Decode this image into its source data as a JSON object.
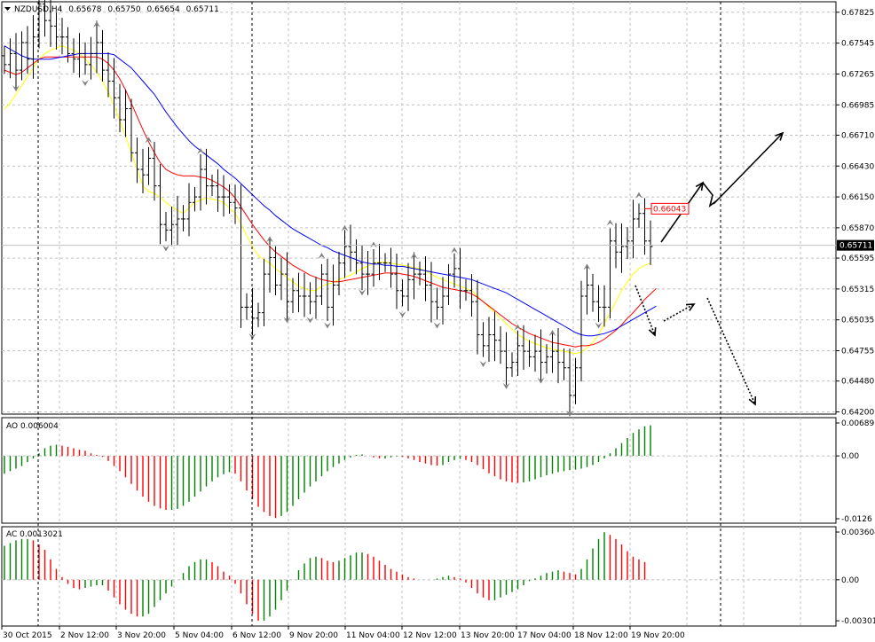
{
  "header": {
    "symbol": "NZDUSD,H4",
    "open": "0.65678",
    "high": "0.65750",
    "low": "0.65654",
    "close": "0.65711"
  },
  "colors": {
    "bull": "#008000",
    "bear": "#ff0000",
    "fast_ma": "#ffff00",
    "mid_ma": "#ff0000",
    "slow_ma": "#0000ff",
    "grid": "#c0c0c0",
    "fractal": "#808080"
  },
  "chart_data": [
    {
      "type": "ohlc",
      "name": "price",
      "ylim": [
        0.6418,
        0.6792
      ],
      "y_ticks": [
        "0.67825",
        "0.67545",
        "0.67265",
        "0.66985",
        "0.66710",
        "0.66430",
        "0.66150",
        "0.65870",
        "0.65595",
        "0.65315",
        "0.65035",
        "0.64755",
        "0.64480",
        "0.64200"
      ],
      "current_price_label": "0.65711",
      "marked_level_label": "0.66043",
      "marked_level": 0.66043,
      "x_labels": [
        "30 Oct 2015",
        "2 Nov 12:00",
        "3 Nov 20:00",
        "5 Nov 04:00",
        "6 Nov 12:00",
        "9 Nov 20:00",
        "11 Nov 04:00",
        "12 Nov 12:00",
        "13 Nov 20:00",
        "17 Nov 04:00",
        "18 Nov 12:00",
        "19 Nov 20:00"
      ],
      "close": [
        0.6735,
        0.6745,
        0.673,
        0.6755,
        0.674,
        0.676,
        0.679,
        0.6775,
        0.677,
        0.676,
        0.676,
        0.6745,
        0.674,
        0.6745,
        0.6735,
        0.6745,
        0.6755,
        0.673,
        0.672,
        0.6705,
        0.6685,
        0.6695,
        0.6655,
        0.664,
        0.6635,
        0.665,
        0.6625,
        0.659,
        0.6585,
        0.659,
        0.6595,
        0.6595,
        0.661,
        0.6615,
        0.664,
        0.6625,
        0.6625,
        0.6615,
        0.6615,
        0.661,
        0.6605,
        0.6515,
        0.6515,
        0.6505,
        0.651,
        0.6545,
        0.656,
        0.6535,
        0.6545,
        0.652,
        0.653,
        0.6525,
        0.6525,
        0.652,
        0.6525,
        0.6545,
        0.6515,
        0.6535,
        0.6555,
        0.657,
        0.6565,
        0.6555,
        0.6545,
        0.6545,
        0.6555,
        0.6555,
        0.6555,
        0.6545,
        0.653,
        0.6525,
        0.654,
        0.6545,
        0.6545,
        0.6535,
        0.652,
        0.6515,
        0.6525,
        0.6545,
        0.655,
        0.653,
        0.653,
        0.652,
        0.649,
        0.648,
        0.649,
        0.6485,
        0.6475,
        0.646,
        0.6465,
        0.648,
        0.6475,
        0.647,
        0.6475,
        0.6465,
        0.647,
        0.6475,
        0.6465,
        0.646,
        0.6435,
        0.646,
        0.6525,
        0.6535,
        0.652,
        0.6515,
        0.6515,
        0.6575,
        0.6565,
        0.657,
        0.6575,
        0.6595,
        0.66,
        0.6575,
        0.657
      ],
      "wick_range_note": "",
      "moving_averages": {
        "fast": [
          0.6695,
          0.67,
          0.6708,
          0.6716,
          0.6724,
          0.6732,
          0.674,
          0.6745,
          0.6748,
          0.675,
          0.6752,
          0.675,
          0.6748,
          0.6745,
          0.674,
          0.6735,
          0.6728,
          0.672,
          0.671,
          0.6698,
          0.6684,
          0.667,
          0.6655,
          0.664,
          0.6625,
          0.662,
          0.6618,
          0.6615,
          0.661,
          0.6606,
          0.6603,
          0.66,
          0.6605,
          0.661,
          0.6612,
          0.6614,
          0.6613,
          0.6612,
          0.661,
          0.6605,
          0.66,
          0.659,
          0.658,
          0.657,
          0.6562,
          0.6558,
          0.6555,
          0.655,
          0.6546,
          0.6542,
          0.6538,
          0.6534,
          0.6532,
          0.653,
          0.653,
          0.6534,
          0.6536,
          0.6537,
          0.654,
          0.6542,
          0.6544,
          0.6547,
          0.655,
          0.6552,
          0.6555,
          0.6556,
          0.6556,
          0.6555,
          0.6554,
          0.6553,
          0.6552,
          0.6551,
          0.655,
          0.6548,
          0.6545,
          0.6542,
          0.654,
          0.6538,
          0.6536,
          0.6534,
          0.6532,
          0.653,
          0.6525,
          0.652,
          0.6515,
          0.651,
          0.6505,
          0.65,
          0.6495,
          0.649,
          0.6487,
          0.6484,
          0.6482,
          0.648,
          0.6478,
          0.6477,
          0.6476,
          0.6475,
          0.6474,
          0.6473,
          0.6474,
          0.6478,
          0.6483,
          0.649,
          0.65,
          0.651,
          0.652,
          0.653,
          0.6538,
          0.6545,
          0.655,
          0.6553,
          0.6555
        ],
        "mid": [
          0.673,
          0.6728,
          0.6726,
          0.6728,
          0.6732,
          0.6736,
          0.674,
          0.6742,
          0.6742,
          0.6742,
          0.6742,
          0.6742,
          0.6742,
          0.6742,
          0.6742,
          0.6742,
          0.6742,
          0.674,
          0.6736,
          0.673,
          0.6722,
          0.6712,
          0.67,
          0.6688,
          0.6676,
          0.6665,
          0.6655,
          0.6646,
          0.664,
          0.6637,
          0.6635,
          0.6634,
          0.6634,
          0.6634,
          0.6633,
          0.6632,
          0.663,
          0.6627,
          0.6624,
          0.662,
          0.6614,
          0.6606,
          0.6598,
          0.659,
          0.6583,
          0.6576,
          0.657,
          0.6565,
          0.6561,
          0.6557,
          0.6553,
          0.655,
          0.6547,
          0.6544,
          0.6542,
          0.654,
          0.6539,
          0.6538,
          0.6538,
          0.6539,
          0.654,
          0.6541,
          0.6542,
          0.6543,
          0.6544,
          0.6545,
          0.6546,
          0.6546,
          0.6546,
          0.6545,
          0.6544,
          0.6543,
          0.6541,
          0.6539,
          0.6537,
          0.6535,
          0.6533,
          0.6532,
          0.6531,
          0.653,
          0.6529,
          0.6527,
          0.6524,
          0.652,
          0.6516,
          0.6512,
          0.6508,
          0.6504,
          0.65,
          0.6497,
          0.6494,
          0.6491,
          0.6489,
          0.6487,
          0.6485,
          0.6483,
          0.6482,
          0.6481,
          0.648,
          0.6479,
          0.648,
          0.648,
          0.6481,
          0.6483,
          0.6486,
          0.649,
          0.6494,
          0.6499,
          0.6505,
          0.651,
          0.6516,
          0.6522,
          0.6527,
          0.6532
        ],
        "slow": [
          0.6752,
          0.6749,
          0.6746,
          0.6743,
          0.6741,
          0.674,
          0.674,
          0.674,
          0.674,
          0.6741,
          0.6742,
          0.6743,
          0.6744,
          0.6745,
          0.6745,
          0.6745,
          0.6745,
          0.6745,
          0.6745,
          0.6744,
          0.674,
          0.6736,
          0.6732,
          0.6726,
          0.672,
          0.6714,
          0.6708,
          0.67,
          0.6692,
          0.6685,
          0.6678,
          0.6672,
          0.6666,
          0.6661,
          0.6657,
          0.6653,
          0.6649,
          0.6645,
          0.664,
          0.6636,
          0.6632,
          0.6627,
          0.6622,
          0.6617,
          0.6612,
          0.6607,
          0.6603,
          0.6598,
          0.6594,
          0.659,
          0.6586,
          0.6583,
          0.658,
          0.6577,
          0.6574,
          0.6571,
          0.6569,
          0.6566,
          0.6564,
          0.6562,
          0.656,
          0.6558,
          0.6556,
          0.6555,
          0.6554,
          0.6554,
          0.6553,
          0.6553,
          0.6552,
          0.6552,
          0.6551,
          0.655,
          0.6549,
          0.6548,
          0.6547,
          0.6546,
          0.6545,
          0.6544,
          0.6543,
          0.6542,
          0.6541,
          0.654,
          0.6538,
          0.6536,
          0.6534,
          0.6532,
          0.653,
          0.6528,
          0.6525,
          0.6522,
          0.6519,
          0.6516,
          0.6513,
          0.651,
          0.6507,
          0.6504,
          0.6501,
          0.6498,
          0.6495,
          0.6492,
          0.649,
          0.6489,
          0.6489,
          0.649,
          0.6491,
          0.6493,
          0.6495,
          0.6498,
          0.6501,
          0.6504,
          0.6507,
          0.651,
          0.6513,
          0.6516
        ]
      }
    },
    {
      "type": "histogram",
      "name": "AO",
      "label": "AO 0.006004",
      "ylim": [
        -0.0132,
        0.0075
      ],
      "y_ticks": [
        "0.00689",
        "0.00",
        "-0.0126"
      ],
      "values": [
        -0.0035,
        -0.003,
        -0.0025,
        -0.002,
        -0.0012,
        -0.0005,
        0.0005,
        0.0015,
        0.002,
        0.0022,
        0.002,
        0.0018,
        0.0015,
        0.0012,
        0.001,
        0.0005,
        0.0002,
        -0.0002,
        -0.001,
        -0.002,
        -0.003,
        -0.0042,
        -0.0055,
        -0.0068,
        -0.008,
        -0.009,
        -0.0098,
        -0.0103,
        -0.0106,
        -0.0106,
        -0.0104,
        -0.0098,
        -0.009,
        -0.008,
        -0.007,
        -0.006,
        -0.005,
        -0.0042,
        -0.0036,
        -0.0032,
        -0.0035,
        -0.005,
        -0.0068,
        -0.0085,
        -0.01,
        -0.011,
        -0.0118,
        -0.0122,
        -0.0118,
        -0.011,
        -0.0098,
        -0.0085,
        -0.0072,
        -0.006,
        -0.005,
        -0.004,
        -0.003,
        -0.0022,
        -0.0015,
        -0.0008,
        -0.0003,
        0.0002,
        0.0003,
        0.0,
        -0.0003,
        -0.0005,
        -0.0005,
        -0.0003,
        -0.0001,
        -0.0002,
        -0.0005,
        -0.0008,
        -0.0012,
        -0.0015,
        -0.0018,
        -0.0019,
        -0.0018,
        -0.0012,
        -0.0008,
        -0.0006,
        -0.0008,
        -0.0012,
        -0.0018,
        -0.0026,
        -0.0034,
        -0.004,
        -0.0046,
        -0.005,
        -0.0052,
        -0.0053,
        -0.0052,
        -0.005,
        -0.0046,
        -0.0042,
        -0.0038,
        -0.0035,
        -0.0032,
        -0.003,
        -0.0028,
        -0.0027,
        -0.0025,
        -0.0022,
        -0.0018,
        -0.0012,
        -0.0005,
        0.0005,
        0.0015,
        0.0025,
        0.0035,
        0.0045,
        0.0052,
        0.0058,
        0.006
      ]
    },
    {
      "type": "histogram",
      "name": "AC",
      "label": "AC 0.0013021",
      "ylim": [
        -0.0034,
        0.0039
      ],
      "y_ticks": [
        "0.003604",
        "0.00",
        "-0.003015"
      ],
      "values": [
        0.0025,
        0.0027,
        0.0029,
        0.003,
        0.003,
        0.0029,
        0.0026,
        0.0022,
        0.0015,
        0.0008,
        0.0002,
        -0.0003,
        -0.0006,
        -0.0007,
        -0.0006,
        -0.0005,
        -0.0004,
        -0.0004,
        -0.0008,
        -0.0013,
        -0.0018,
        -0.0022,
        -0.0025,
        -0.0027,
        -0.0027,
        -0.0025,
        -0.002,
        -0.0015,
        -0.001,
        -0.0005,
        0.0,
        0.0005,
        0.001,
        0.0013,
        0.0015,
        0.0015,
        0.0013,
        0.001,
        0.0006,
        0.0003,
        -0.0003,
        -0.001,
        -0.0018,
        -0.0025,
        -0.003,
        -0.003,
        -0.0027,
        -0.0022,
        -0.0015,
        -0.0008,
        0.0,
        0.0007,
        0.0012,
        0.0016,
        0.0017,
        0.0016,
        0.0014,
        0.0013,
        0.0014,
        0.0016,
        0.0018,
        0.002,
        0.002,
        0.0019,
        0.0017,
        0.0014,
        0.0011,
        0.0008,
        0.0006,
        0.0004,
        0.0002,
        0.0001,
        0.0,
        0.0,
        0.0,
        0.0001,
        0.0002,
        0.0003,
        0.0002,
        0.0001,
        -0.0002,
        -0.0006,
        -0.001,
        -0.0013,
        -0.0015,
        -0.0015,
        -0.0013,
        -0.0011,
        -0.0009,
        -0.0007,
        -0.0004,
        -0.0001,
        0.0001,
        0.0003,
        0.0005,
        0.0006,
        0.0007,
        0.0006,
        0.0005,
        0.0004,
        0.0008,
        0.0015,
        0.0023,
        0.003,
        0.0035,
        0.0033,
        0.003,
        0.0026,
        0.0021,
        0.0017,
        0.0015,
        0.0013
      ]
    }
  ]
}
